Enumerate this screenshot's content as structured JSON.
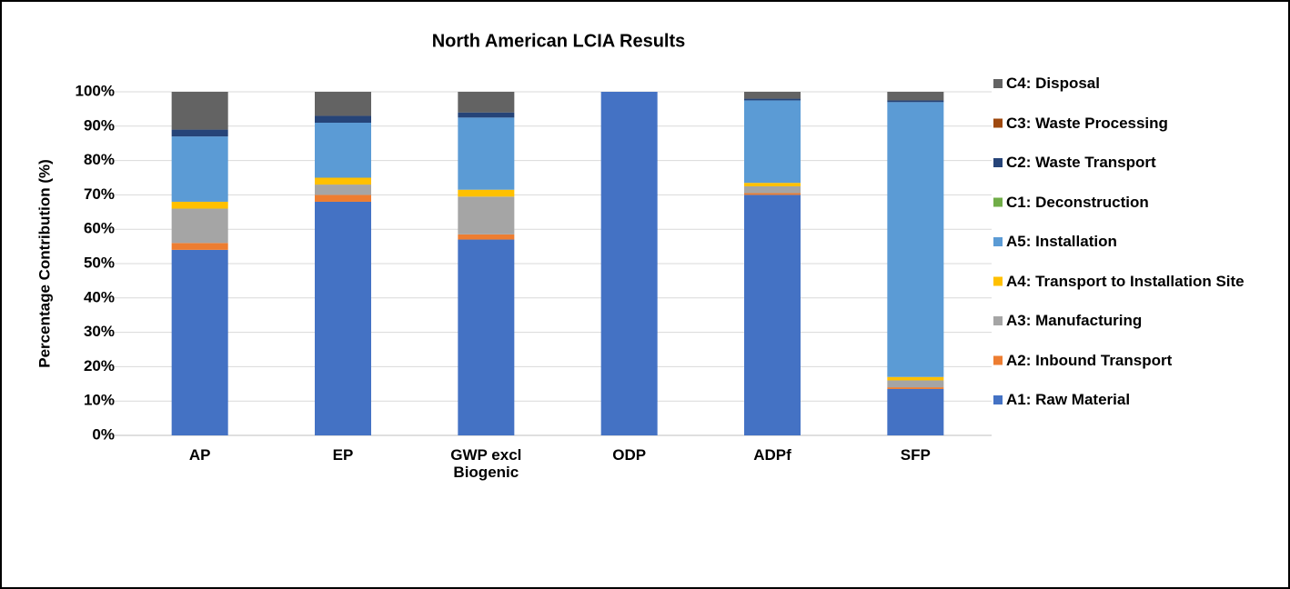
{
  "chart_data": {
    "type": "stacked_bar",
    "title": "North American LCIA Results",
    "y_label": "Percentage Contribution (%)",
    "categories": [
      "AP",
      "EP",
      "GWP excl Biogenic",
      "ODP",
      "ADPf",
      "SFP"
    ],
    "series": [
      {
        "name": "A1: Raw Material",
        "color": "#4472c4",
        "values": [
          54,
          68,
          57,
          100,
          70,
          13.5
        ]
      },
      {
        "name": "A2: Inbound Transport",
        "color": "#ed7d31",
        "values": [
          2,
          2,
          1.5,
          0,
          0.5,
          0.5
        ]
      },
      {
        "name": "A3: Manufacturing",
        "color": "#a5a5a5",
        "values": [
          10,
          3,
          11,
          0,
          2,
          2
        ]
      },
      {
        "name": "A4: Transport to Installation Site",
        "color": "#ffc000",
        "values": [
          2,
          2,
          2,
          0,
          1,
          1
        ]
      },
      {
        "name": "A5: Installation",
        "color": "#5b9bd5",
        "values": [
          19,
          16,
          21,
          0,
          24,
          80
        ]
      },
      {
        "name": "C1: Deconstruction",
        "color": "#70ad47",
        "values": [
          0,
          0,
          0,
          0,
          0,
          0
        ]
      },
      {
        "name": "C2: Waste Transport",
        "color": "#264478",
        "values": [
          2,
          2,
          1.5,
          0,
          0.5,
          0.5
        ]
      },
      {
        "name": "C3: Waste Processing",
        "color": "#9e480e",
        "values": [
          0,
          0,
          0,
          0,
          0,
          0
        ]
      },
      {
        "name": "C4: Disposal",
        "color": "#636363",
        "values": [
          11,
          7,
          6,
          0,
          2,
          2.5
        ]
      }
    ],
    "ylim": [
      0,
      100
    ],
    "yticks": [
      {
        "value": 0,
        "label": "0%"
      },
      {
        "value": 10,
        "label": "10%"
      },
      {
        "value": 20,
        "label": "20%"
      },
      {
        "value": 30,
        "label": "30%"
      },
      {
        "value": 40,
        "label": "40%"
      },
      {
        "value": 50,
        "label": "50%"
      },
      {
        "value": 60,
        "label": "60%"
      },
      {
        "value": 70,
        "label": "70%"
      },
      {
        "value": 80,
        "label": "80%"
      },
      {
        "value": 90,
        "label": "90%"
      },
      {
        "value": 100,
        "label": "100%"
      }
    ],
    "grid": true,
    "legend": "right"
  }
}
